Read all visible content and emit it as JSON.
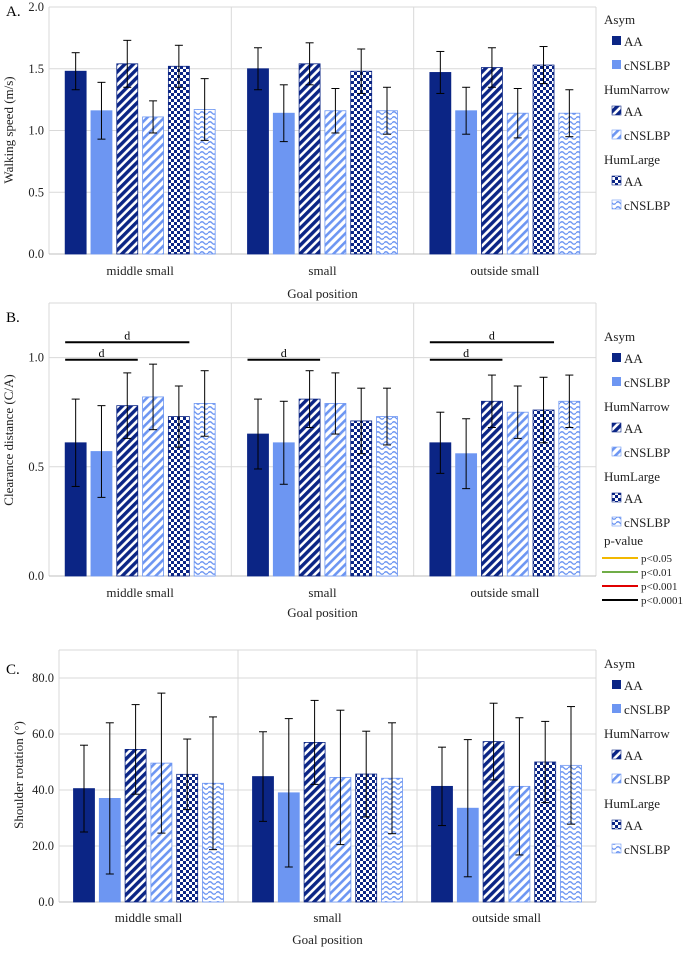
{
  "colors": {
    "dark": "#0b2585",
    "light": "#6d96f2",
    "grid": "#d9d9d9",
    "axis": "#bfbfbf"
  },
  "legend_groups": [
    {
      "title": "Asym",
      "items": [
        {
          "label": "AA",
          "pattern": "solid-dark"
        },
        {
          "label": "cNSLBP",
          "pattern": "solid-light"
        }
      ]
    },
    {
      "title": "HumNarrow",
      "items": [
        {
          "label": "AA",
          "pattern": "diag-dark"
        },
        {
          "label": "cNSLBP",
          "pattern": "diag-light"
        }
      ]
    },
    {
      "title": "HumLarge",
      "items": [
        {
          "label": "AA",
          "pattern": "check-dark"
        },
        {
          "label": "cNSLBP",
          "pattern": "wave-light"
        }
      ]
    }
  ],
  "pvalue_legend": {
    "title": "p-value",
    "items": [
      {
        "label": "p<0.05",
        "color": "#f2b800"
      },
      {
        "label": "p<0.01",
        "color": "#70ad47"
      },
      {
        "label": "p<0.001",
        "color": "#e00000"
      },
      {
        "label": "p<0.0001",
        "color": "#000000"
      }
    ]
  },
  "chart_data": [
    {
      "panel_label": "A.",
      "type": "bar",
      "ylabel": "Walking speed (m/s)",
      "xlabel": "Goal position",
      "categories": [
        "middle small",
        "small",
        "outside small"
      ],
      "ylim": [
        0,
        2
      ],
      "yticks": [
        "0.0",
        "0.5",
        "1.0",
        "1.5",
        "2.0"
      ],
      "yticks_values": [
        0,
        0.5,
        1.0,
        1.5,
        2.0
      ],
      "series": [
        {
          "name": "Asym AA",
          "values": [
            1.48,
            1.5,
            1.47
          ],
          "errors": [
            0.15,
            0.17,
            0.17
          ]
        },
        {
          "name": "Asym cNSLBP",
          "values": [
            1.16,
            1.14,
            1.16
          ],
          "errors": [
            0.23,
            0.23,
            0.19
          ]
        },
        {
          "name": "HumNarrow AA",
          "values": [
            1.54,
            1.54,
            1.51
          ],
          "errors": [
            0.19,
            0.17,
            0.16
          ]
        },
        {
          "name": "HumNarrow cNSLBP",
          "values": [
            1.11,
            1.16,
            1.14
          ],
          "errors": [
            0.13,
            0.18,
            0.2
          ]
        },
        {
          "name": "HumLarge AA",
          "values": [
            1.52,
            1.48,
            1.53
          ],
          "errors": [
            0.17,
            0.18,
            0.15
          ]
        },
        {
          "name": "HumLarge cNSLBP",
          "values": [
            1.17,
            1.16,
            1.14
          ],
          "errors": [
            0.25,
            0.19,
            0.19
          ]
        }
      ],
      "significance": []
    },
    {
      "panel_label": "B.",
      "type": "bar",
      "ylabel": "Clearance distance (C/A)",
      "xlabel": "Goal position",
      "categories": [
        "middle small",
        "small",
        "outside small"
      ],
      "ylim": [
        0,
        1.25
      ],
      "yticks": [
        "0.0",
        "0.5",
        "1.0"
      ],
      "yticks_values": [
        0,
        0.5,
        1.0
      ],
      "series": [
        {
          "name": "Asym AA",
          "values": [
            0.61,
            0.65,
            0.61
          ],
          "errors": [
            0.2,
            0.16,
            0.14
          ]
        },
        {
          "name": "Asym cNSLBP",
          "values": [
            0.57,
            0.61,
            0.56
          ],
          "errors": [
            0.21,
            0.19,
            0.16
          ]
        },
        {
          "name": "HumNarrow AA",
          "values": [
            0.78,
            0.81,
            0.8
          ],
          "errors": [
            0.15,
            0.13,
            0.12
          ]
        },
        {
          "name": "HumNarrow cNSLBP",
          "values": [
            0.82,
            0.79,
            0.75
          ],
          "errors": [
            0.15,
            0.14,
            0.12
          ]
        },
        {
          "name": "HumLarge AA",
          "values": [
            0.73,
            0.71,
            0.76
          ],
          "errors": [
            0.14,
            0.15,
            0.15
          ]
        },
        {
          "name": "HumLarge cNSLBP",
          "values": [
            0.79,
            0.73,
            0.8
          ],
          "errors": [
            0.15,
            0.13,
            0.12
          ]
        }
      ],
      "significance": [
        {
          "group": 0,
          "from": 0,
          "to": 4,
          "value": 1.07,
          "label": "d"
        },
        {
          "group": 0,
          "from": 0,
          "to": 2,
          "value": 0.99,
          "label": "d"
        },
        {
          "group": 1,
          "from": 0,
          "to": 2,
          "value": 0.99,
          "label": "d"
        },
        {
          "group": 2,
          "from": 0,
          "to": 4,
          "value": 1.07,
          "label": "d"
        },
        {
          "group": 2,
          "from": 0,
          "to": 2,
          "value": 0.99,
          "label": "d"
        }
      ]
    },
    {
      "panel_label": "C.",
      "type": "bar",
      "ylabel": "Shoulder rotation (°)",
      "xlabel": "Goal position",
      "categories": [
        "middle small",
        "small",
        "outside small"
      ],
      "ylim": [
        0,
        90
      ],
      "yticks": [
        "0.0",
        "20.0",
        "40.0",
        "60.0",
        "80.0"
      ],
      "yticks_values": [
        0,
        20,
        40,
        60,
        80
      ],
      "series": [
        {
          "name": "Asym AA",
          "values": [
            40.5,
            44.8,
            41.3
          ],
          "errors": [
            15.5,
            16.0,
            14.0
          ]
        },
        {
          "name": "Asym cNSLBP",
          "values": [
            37.0,
            39.0,
            33.5
          ],
          "errors": [
            27.0,
            26.5,
            24.5
          ]
        },
        {
          "name": "HumNarrow AA",
          "values": [
            54.5,
            57.0,
            57.3
          ],
          "errors": [
            16.0,
            15.0,
            13.7
          ]
        },
        {
          "name": "HumNarrow cNSLBP",
          "values": [
            49.6,
            44.5,
            41.3
          ],
          "errors": [
            25.0,
            24.0,
            24.5
          ]
        },
        {
          "name": "HumLarge AA",
          "values": [
            45.6,
            45.7,
            50.0
          ],
          "errors": [
            12.6,
            15.3,
            14.5
          ]
        },
        {
          "name": "HumLarge cNSLBP",
          "values": [
            42.4,
            44.2,
            48.8
          ],
          "errors": [
            23.7,
            19.8,
            21.0
          ]
        }
      ],
      "significance": []
    }
  ]
}
